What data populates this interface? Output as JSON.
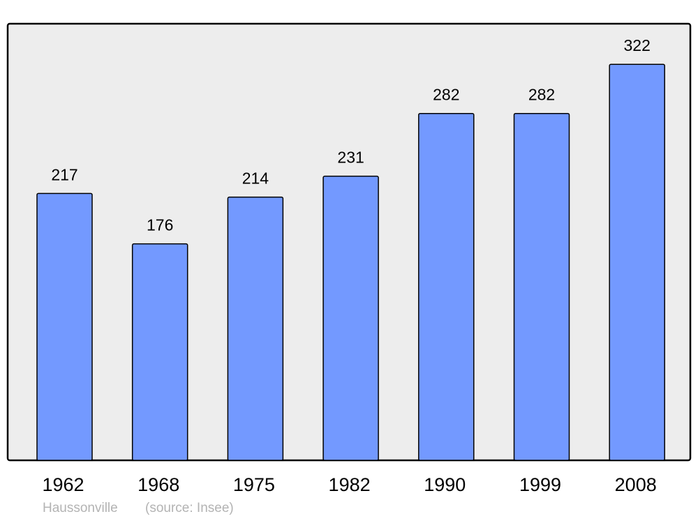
{
  "chart_data": {
    "type": "bar",
    "categories": [
      "1962",
      "1968",
      "1975",
      "1982",
      "1990",
      "1999",
      "2008"
    ],
    "values": [
      217,
      176,
      214,
      231,
      282,
      282,
      322
    ],
    "title": "",
    "xlabel": "",
    "ylabel": "",
    "ylim": [
      0,
      355
    ],
    "grid": false,
    "data_labels": true,
    "colors": {
      "bar": "#7399ff",
      "plot_background": "#ededed",
      "frame": "#000000"
    }
  },
  "footer": {
    "place": "Haussonville",
    "source": "(source: Insee)"
  }
}
